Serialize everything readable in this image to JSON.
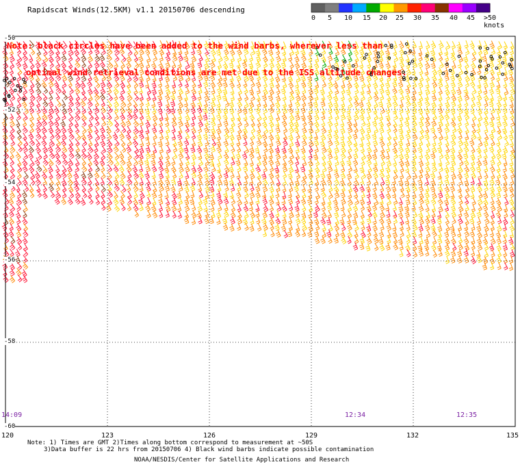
{
  "title": "Rapidscat Winds(12.5KM) v1.1 20150706 descending",
  "note_lines": [
    "Note: black circles have been added to the wind barbs, wherever less than",
    "optimal wind retrieval conditions are met due to the ISS altitude changes."
  ],
  "legend": {
    "labels": [
      "0",
      "5",
      "10",
      "15",
      "20",
      "25",
      "30",
      "35",
      "40",
      "45",
      ">50 knots"
    ],
    "colors": [
      "#606060",
      "#7f7f7f",
      "#2233ff",
      "#00aaff",
      "#00aa00",
      "#ffff00",
      "#ff9900",
      "#ff2200",
      "#ff0077",
      "#883300",
      "#ff00ff",
      "#9900ff",
      "#440088"
    ]
  },
  "axes": {
    "x_ticks": [
      "120",
      "123",
      "126",
      "129",
      "132",
      "135"
    ],
    "y_ticks": [
      "-50",
      "-52",
      "-54",
      "-56",
      "-58",
      "-60"
    ]
  },
  "time_labels": [
    "14:09",
    "12:34",
    "12:35"
  ],
  "footer": {
    "line1": "Note: 1) Times are GMT 2)Times along bottom correspond to measurement at ~50S",
    "line2": "3)Data buffer is 22 hrs from 20150706 4) Black wind barbs indicate possible contamination",
    "line3": "NOAA/NESDIS/Center for Satellite Applications and Research"
  },
  "colors": {
    "barb_yellow": "#ffd400",
    "barb_orange": "#ff8800",
    "barb_red": "#ff1133",
    "barb_dark": "#8a3a10",
    "barb_green": "#00aa00",
    "note_red": "#ff0000",
    "time_purple": "#7a1fa2"
  }
}
